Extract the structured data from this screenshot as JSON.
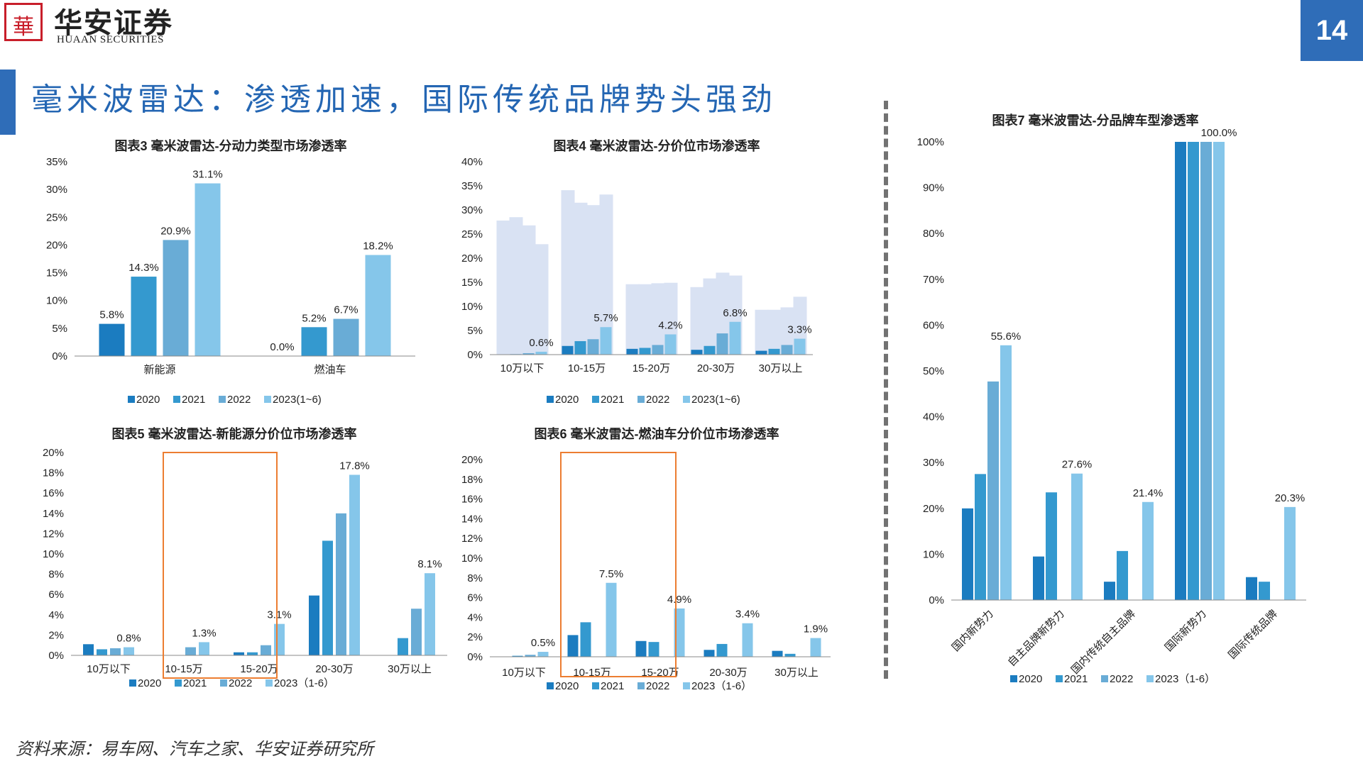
{
  "header": {
    "company_cn": "华安证券",
    "company_en": "HUAAN SECURITIES",
    "page_number": "14"
  },
  "page_title": "毫米波雷达：渗透加速，国际传统品牌势头强劲",
  "source": "资料来源：易车网、汽车之家、华安证券研究所",
  "colors": {
    "s2020": "#1b7cc0",
    "s2021": "#3499cf",
    "s2022": "#69acd6",
    "s2023": "#85c6ea",
    "bg_band": "#d9e2f3",
    "title_blue": "#2466b3",
    "highlight": "#ec7d31"
  },
  "chart_data": [
    {
      "id": "c3",
      "type": "bar",
      "title": "图表3 毫米波雷达-分动力类型市场渗透率",
      "categories": [
        "新能源",
        "燃油车"
      ],
      "series": [
        {
          "name": "2020",
          "values": [
            5.8,
            0.0
          ]
        },
        {
          "name": "2021",
          "values": [
            14.3,
            5.2
          ]
        },
        {
          "name": "2022",
          "values": [
            20.9,
            6.7
          ]
        },
        {
          "name": "2023(1~6)",
          "values": [
            31.1,
            18.2
          ]
        }
      ],
      "data_labels": [
        [
          "5.8%",
          "0.0%"
        ],
        [
          "14.3%",
          "5.2%"
        ],
        [
          "20.9%",
          "6.7%"
        ],
        [
          "31.1%",
          "18.2%"
        ]
      ],
      "ylim": [
        0,
        35
      ],
      "yticks": [
        0,
        5,
        10,
        15,
        20,
        25,
        30,
        35
      ],
      "ytick_labels": [
        "0%",
        "5%",
        "10%",
        "15%",
        "20%",
        "25%",
        "30%",
        "35%"
      ],
      "legend": "bottom"
    },
    {
      "id": "c4",
      "type": "bar",
      "title": "图表4 毫米波雷达-分价位市场渗透率",
      "categories": [
        "10万以下",
        "10-15万",
        "15-20万",
        "20-30万",
        "30万以上"
      ],
      "series": [
        {
          "name": "2020",
          "values": [
            0.0,
            1.8,
            1.2,
            1.0,
            0.8
          ]
        },
        {
          "name": "2021",
          "values": [
            0.1,
            2.8,
            1.4,
            1.8,
            1.2
          ]
        },
        {
          "name": "2022",
          "values": [
            0.3,
            3.2,
            2.0,
            4.4,
            2.0
          ]
        },
        {
          "name": "2023(1~6)",
          "values": [
            0.6,
            5.7,
            4.2,
            6.8,
            3.3
          ]
        }
      ],
      "data_labels": [
        null,
        null,
        null,
        [
          "0.6%",
          "5.7%",
          "4.2%",
          "6.8%",
          "3.3%"
        ]
      ],
      "background_bands": [
        [
          27.8,
          28.5,
          26.8,
          22.9
        ],
        [
          34.1,
          31.5,
          31.0,
          33.2
        ],
        [
          14.6,
          14.6,
          14.8,
          14.9
        ],
        [
          14.0,
          15.8,
          17.0,
          16.4
        ],
        [
          9.3,
          9.3,
          9.8,
          12.0
        ]
      ],
      "ylim": [
        0,
        40
      ],
      "yticks": [
        0,
        5,
        10,
        15,
        20,
        25,
        30,
        35,
        40
      ],
      "ytick_labels": [
        "0%",
        "5%",
        "10%",
        "15%",
        "20%",
        "25%",
        "30%",
        "35%",
        "40%"
      ],
      "legend": "bottom"
    },
    {
      "id": "c5",
      "type": "bar",
      "title": "图表5 毫米波雷达-新能源分价位市场渗透率",
      "categories": [
        "10万以下",
        "10-15万",
        "15-20万",
        "20-30万",
        "30万以上"
      ],
      "series": [
        {
          "name": "2020",
          "values": [
            1.1,
            0.0,
            0.3,
            5.9,
            0.0
          ]
        },
        {
          "name": "2021",
          "values": [
            0.6,
            0.0,
            0.3,
            11.3,
            1.7
          ]
        },
        {
          "name": "2022",
          "values": [
            0.7,
            0.8,
            1.0,
            14.0,
            4.6
          ]
        },
        {
          "name": "2023（1-6）",
          "values": [
            0.8,
            1.3,
            3.1,
            17.8,
            8.1
          ]
        }
      ],
      "data_labels": [
        null,
        null,
        null,
        [
          "0.8%",
          "1.3%",
          "3.1%",
          "17.8%",
          "8.1%"
        ]
      ],
      "ylim": [
        0,
        20
      ],
      "yticks": [
        0,
        2,
        4,
        6,
        8,
        10,
        12,
        14,
        16,
        18,
        20
      ],
      "ytick_labels": [
        "0%",
        "2%",
        "4%",
        "6%",
        "8%",
        "10%",
        "12%",
        "14%",
        "16%",
        "18%",
        "20%"
      ],
      "highlight_categories": [
        "20-30万",
        "30万以上"
      ],
      "legend": "bottom"
    },
    {
      "id": "c6",
      "type": "bar",
      "title": "图表6 毫米波雷达-燃油车分价位市场渗透率",
      "categories": [
        "10万以下",
        "10-15万",
        "15-20万",
        "20-30万",
        "30万以上"
      ],
      "series": [
        {
          "name": "2020",
          "values": [
            0.0,
            2.2,
            1.6,
            0.7,
            0.6
          ]
        },
        {
          "name": "2021",
          "values": [
            0.1,
            3.5,
            1.5,
            1.3,
            0.3
          ]
        },
        {
          "name": "2022",
          "values": [
            0.2,
            0.0,
            0.0,
            0.0,
            0.0
          ]
        },
        {
          "name": "2023（1-6）",
          "values": [
            0.5,
            7.5,
            4.9,
            3.4,
            1.9
          ]
        }
      ],
      "data_labels": [
        null,
        null,
        null,
        [
          "0.5%",
          "7.5%",
          "4.9%",
          "3.4%",
          "1.9%"
        ]
      ],
      "ylim": [
        0,
        20
      ],
      "yticks": [
        0,
        2,
        4,
        6,
        8,
        10,
        12,
        14,
        16,
        18,
        20
      ],
      "ytick_labels": [
        "0%",
        "2%",
        "4%",
        "6%",
        "8%",
        "10%",
        "12%",
        "14%",
        "16%",
        "18%",
        "20%"
      ],
      "highlight_categories": [
        "10-15万",
        "15-20万"
      ],
      "legend": "bottom"
    },
    {
      "id": "c7",
      "type": "bar",
      "title": "图表7 毫米波雷达-分品牌车型渗透率",
      "categories": [
        "国内新势力",
        "自主品牌新势力",
        "国内传统自主品牌",
        "国际新势力",
        "国际传统品牌"
      ],
      "series": [
        {
          "name": "2020",
          "values": [
            20.0,
            9.5,
            4.0,
            100.0,
            5.0
          ]
        },
        {
          "name": "2021",
          "values": [
            27.5,
            23.5,
            10.7,
            100.0,
            4.0
          ]
        },
        {
          "name": "2022",
          "values": [
            47.7,
            0.0,
            0.0,
            100.0,
            0.0
          ]
        },
        {
          "name": "2023（1-6）",
          "values": [
            55.6,
            27.6,
            21.4,
            100.0,
            20.3
          ]
        }
      ],
      "data_labels": [
        null,
        null,
        null,
        [
          "55.6%",
          "27.6%",
          "21.4%",
          "100.0%",
          "20.3%"
        ]
      ],
      "ylim": [
        0,
        100
      ],
      "yticks": [
        0,
        10,
        20,
        30,
        40,
        50,
        60,
        70,
        80,
        90,
        100
      ],
      "ytick_labels": [
        "0%",
        "10%",
        "20%",
        "30%",
        "40%",
        "50%",
        "60%",
        "70%",
        "80%",
        "90%",
        "100%"
      ],
      "legend": "bottom"
    }
  ]
}
